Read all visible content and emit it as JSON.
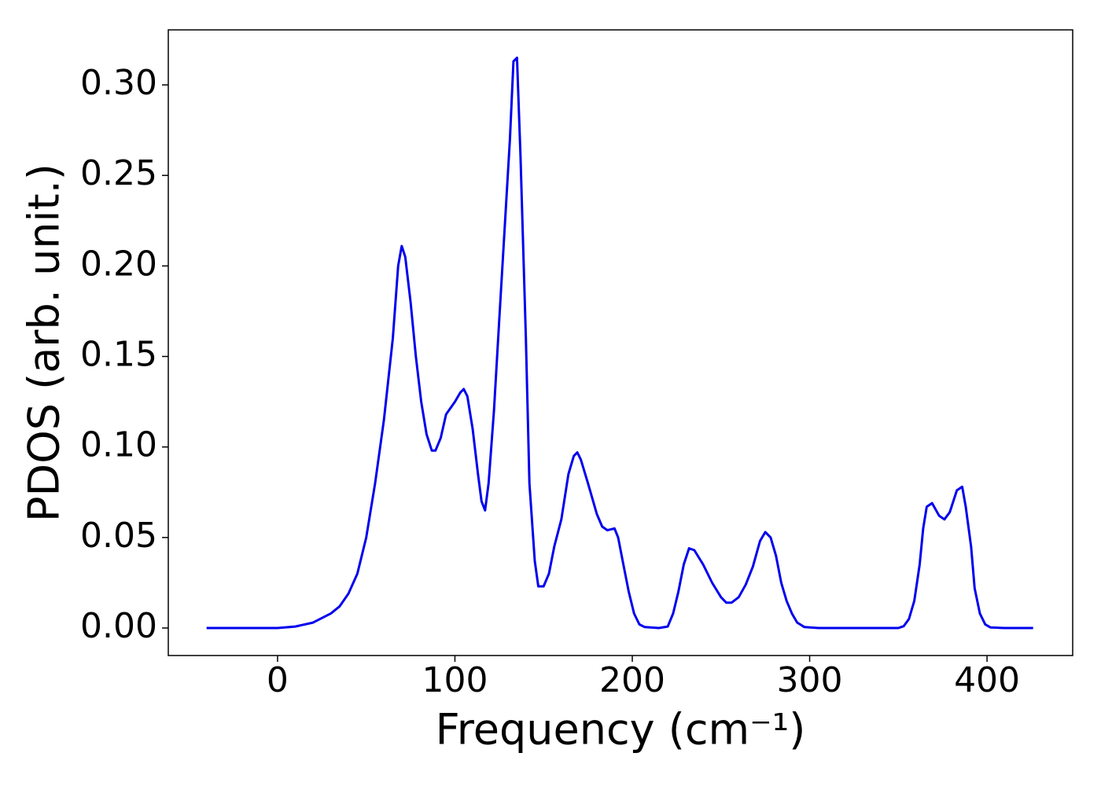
{
  "chart_data": {
    "type": "line",
    "xlabel": "Frequency (cm⁻¹)",
    "ylabel": "PDOS (arb. unit.)",
    "color": "#0000ee",
    "x": [
      -40,
      -20,
      0,
      10,
      20,
      30,
      35,
      40,
      45,
      50,
      55,
      60,
      65,
      68,
      70,
      72,
      75,
      78,
      81,
      84,
      87,
      89,
      92,
      95,
      100,
      103,
      105,
      107,
      110,
      113,
      115,
      117,
      119,
      122,
      125,
      128,
      131,
      133,
      135,
      137,
      140,
      142,
      145,
      147,
      150,
      153,
      156,
      160,
      164,
      167,
      169,
      171,
      175,
      180,
      183,
      186,
      190,
      192,
      195,
      198,
      201,
      204,
      207,
      215,
      220,
      223,
      226,
      229,
      232,
      235,
      240,
      245,
      250,
      253,
      256,
      260,
      264,
      268,
      272,
      275,
      278,
      281,
      284,
      287,
      290,
      293,
      297,
      305,
      330,
      350,
      353,
      356,
      359,
      362,
      364,
      366,
      369,
      373,
      376,
      379,
      383,
      386,
      388,
      391,
      393,
      396,
      399,
      402,
      410,
      426
    ],
    "values": [
      0,
      0,
      0,
      0.0008,
      0.003,
      0.008,
      0.012,
      0.019,
      0.03,
      0.05,
      0.08,
      0.115,
      0.16,
      0.2,
      0.211,
      0.205,
      0.18,
      0.15,
      0.125,
      0.107,
      0.098,
      0.098,
      0.105,
      0.118,
      0.125,
      0.13,
      0.132,
      0.128,
      0.11,
      0.085,
      0.07,
      0.065,
      0.08,
      0.12,
      0.17,
      0.22,
      0.27,
      0.313,
      0.315,
      0.26,
      0.16,
      0.08,
      0.037,
      0.023,
      0.023,
      0.03,
      0.045,
      0.06,
      0.085,
      0.095,
      0.097,
      0.093,
      0.08,
      0.063,
      0.056,
      0.054,
      0.055,
      0.05,
      0.035,
      0.02,
      0.008,
      0.002,
      0.0005,
      0,
      0.0008,
      0.008,
      0.02,
      0.035,
      0.044,
      0.043,
      0.035,
      0.025,
      0.017,
      0.014,
      0.014,
      0.017,
      0.024,
      0.034,
      0.048,
      0.053,
      0.05,
      0.04,
      0.025,
      0.015,
      0.008,
      0.003,
      0.0005,
      0,
      0,
      0,
      0.001,
      0.005,
      0.015,
      0.035,
      0.055,
      0.067,
      0.069,
      0.062,
      0.06,
      0.064,
      0.076,
      0.078,
      0.067,
      0.045,
      0.022,
      0.008,
      0.002,
      0.0003,
      0,
      0
    ],
    "xlim": [
      -61.6,
      448.3
    ],
    "ylim": [
      -0.0152,
      0.3304
    ],
    "xticks": [
      0,
      100,
      200,
      300,
      400
    ],
    "yticks": [
      {
        "value": 0,
        "label": "0.00"
      },
      {
        "value": 0.05,
        "label": "0.05"
      },
      {
        "value": 0.1,
        "label": "0.10"
      },
      {
        "value": 0.15,
        "label": "0.15"
      },
      {
        "value": 0.2,
        "label": "0.20"
      },
      {
        "value": 0.25,
        "label": "0.25"
      },
      {
        "value": 0.3,
        "label": "0.30"
      }
    ]
  }
}
